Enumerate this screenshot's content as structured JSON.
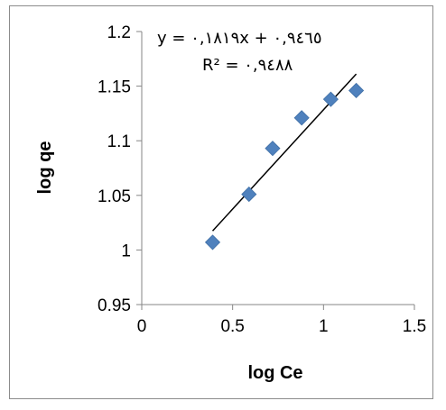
{
  "chart_data": {
    "type": "scatter",
    "xlabel": "log Ce",
    "ylabel": "log qe",
    "xlim": [
      0,
      1.5
    ],
    "ylim": [
      0.95,
      1.2
    ],
    "x_ticks": [
      "0",
      "0.5",
      "1",
      "1.5"
    ],
    "y_ticks": [
      "0.95",
      "1",
      "1.05",
      "1.1",
      "1.15",
      "1.2"
    ],
    "points": [
      {
        "x": 0.39,
        "y": 1.007
      },
      {
        "x": 0.59,
        "y": 1.051
      },
      {
        "x": 0.72,
        "y": 1.093
      },
      {
        "x": 0.88,
        "y": 1.121
      },
      {
        "x": 1.04,
        "y": 1.138
      },
      {
        "x": 1.18,
        "y": 1.146
      }
    ],
    "trendline": {
      "slope": 0.1819,
      "intercept": 0.9465,
      "x_start": 0.39,
      "x_end": 1.18
    },
    "equation_text": "y = ٠,١٨١٩x + ٠,٩٤٦٥",
    "r2_text": "R² = ٠,٩٤٨٨",
    "marker_color": "#4f81bd",
    "line_color": "#000000"
  }
}
